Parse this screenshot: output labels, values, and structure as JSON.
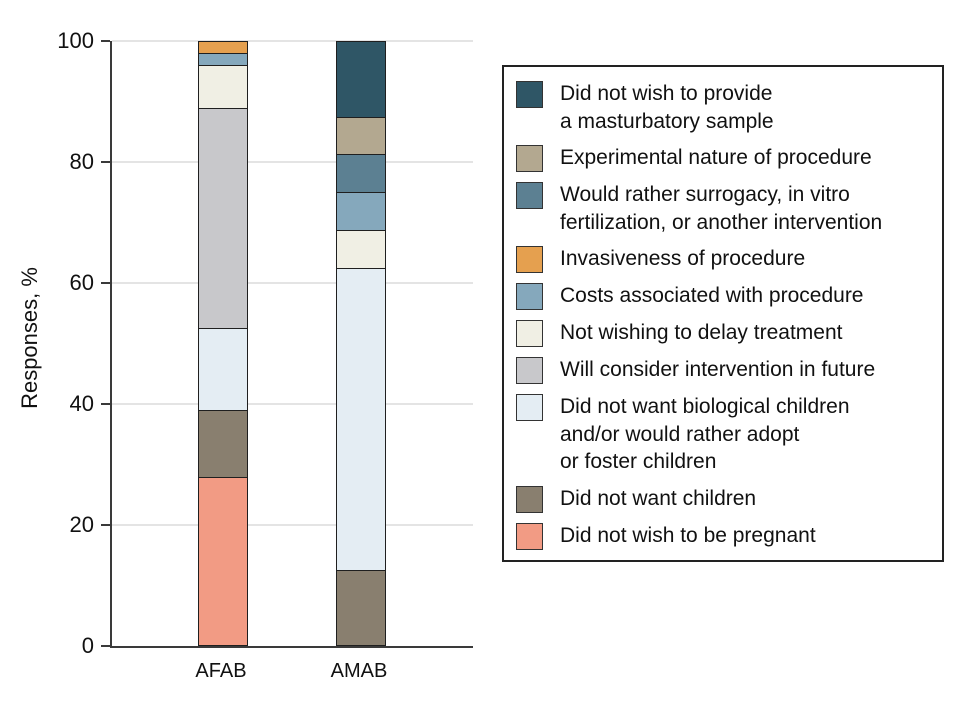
{
  "chart_data": {
    "type": "bar",
    "stacked": true,
    "ylabel": "Responses, %",
    "ylim": [
      0,
      100
    ],
    "yticks": [
      0,
      20,
      40,
      60,
      80,
      100
    ],
    "grid": true,
    "legend_position": "right",
    "categories": [
      "AFAB",
      "AMAB"
    ],
    "series": [
      {
        "name": "Did not wish to provide a masturbatory sample",
        "legend_label": "Did not wish to provide\na masturbatory sample",
        "color": "#2f5666",
        "values": [
          0,
          12.5
        ]
      },
      {
        "name": "Experimental nature of procedure",
        "legend_label": "Experimental nature of procedure",
        "color": "#b3a890",
        "values": [
          0,
          6.25
        ]
      },
      {
        "name": "Would rather surrogacy, in vitro fertilization, or another intervention",
        "legend_label": "Would rather surrogacy, in vitro\nfertilization, or another intervention",
        "color": "#5c8092",
        "values": [
          0,
          6.25
        ]
      },
      {
        "name": "Invasiveness of procedure",
        "legend_label": "Invasiveness of procedure",
        "color": "#e5a04f",
        "values": [
          2,
          0
        ]
      },
      {
        "name": "Costs associated with procedure",
        "legend_label": "Costs associated with procedure",
        "color": "#85a8bc",
        "values": [
          2,
          6.25
        ]
      },
      {
        "name": "Not wishing to delay treatment",
        "legend_label": "Not wishing to delay treatment",
        "color": "#f0efe4",
        "values": [
          7,
          6.25
        ]
      },
      {
        "name": "Will consider intervention in future",
        "legend_label": "Will consider intervention in future",
        "color": "#c8c8cb",
        "values": [
          36.5,
          0
        ]
      },
      {
        "name": "Did not want biological children and/or would rather adopt or foster children",
        "legend_label": "Did not want biological children\nand/or would rather adopt\nor foster children",
        "color": "#e4edf3",
        "values": [
          13.5,
          50
        ]
      },
      {
        "name": "Did not want children",
        "legend_label": "Did not want children",
        "color": "#897f6f",
        "values": [
          11,
          12.5
        ]
      },
      {
        "name": "Did not wish to be pregnant",
        "legend_label": "Did not wish to be pregnant",
        "color": "#f29b84",
        "values": [
          28,
          0
        ]
      }
    ]
  }
}
